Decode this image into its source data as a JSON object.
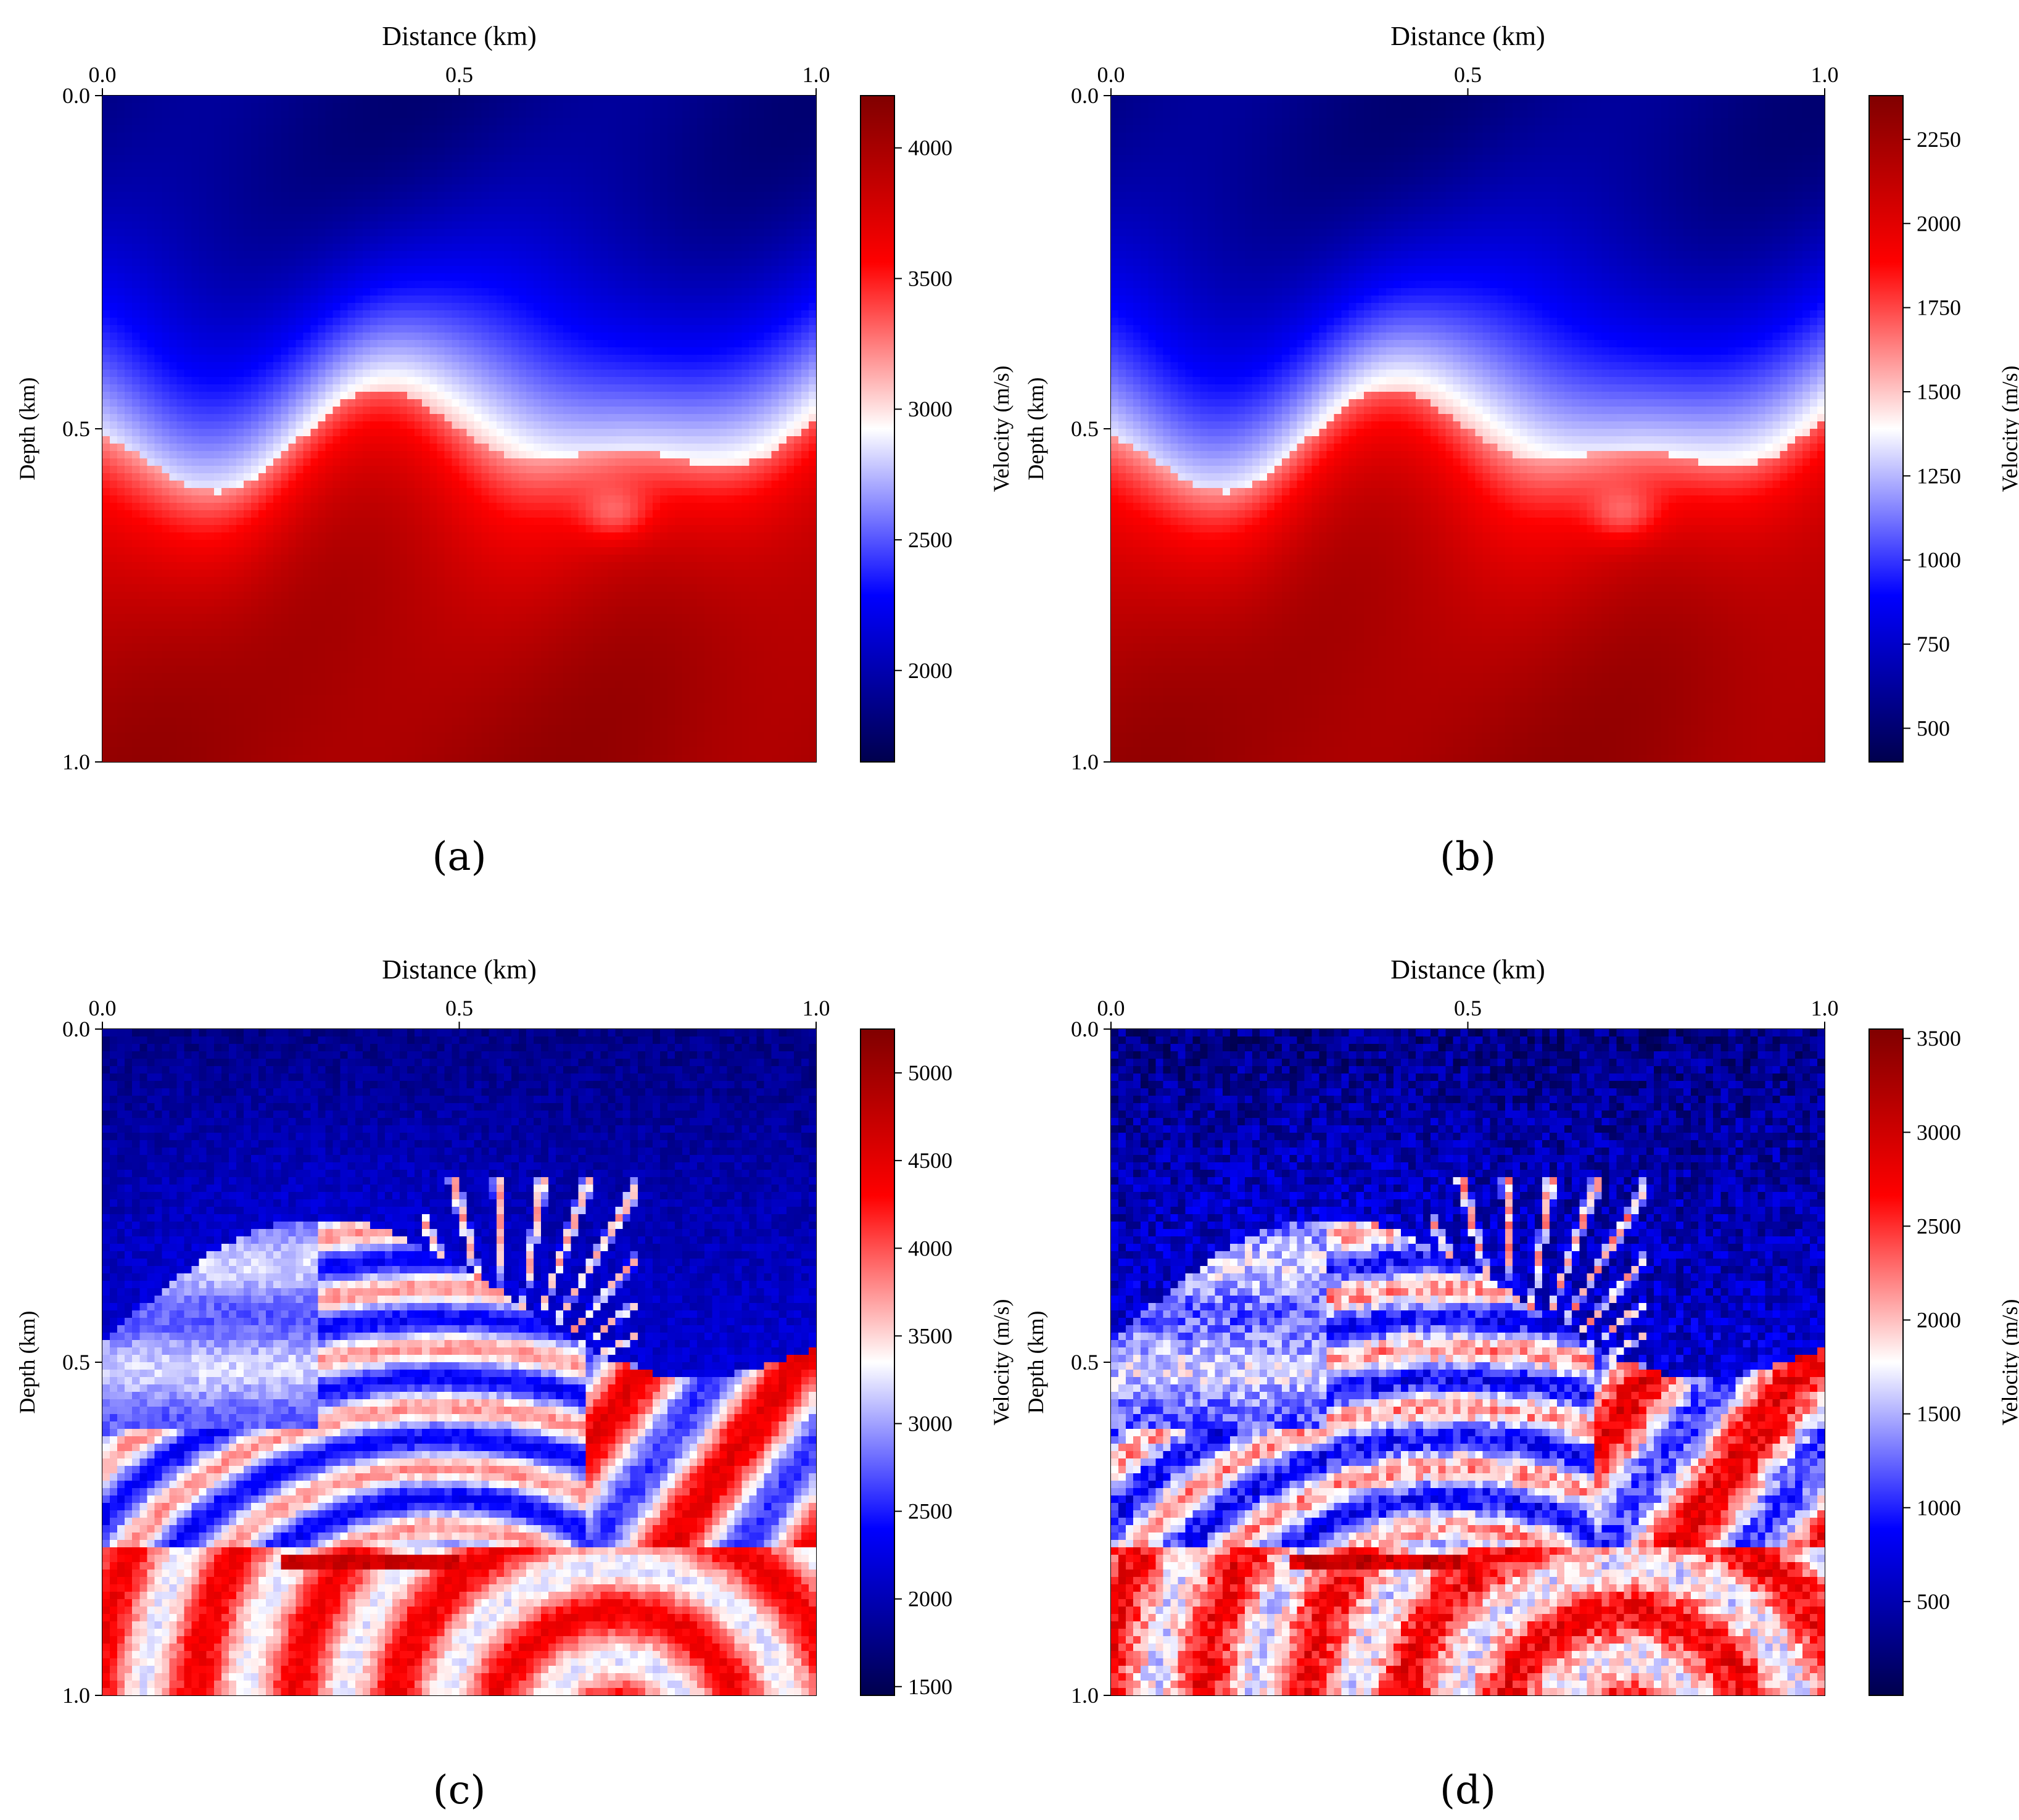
{
  "colormap": [
    "#00004d",
    "#0000ff",
    "#ffffff",
    "#ff0000",
    "#800000"
  ],
  "chart_data": [
    {
      "type": "heatmap",
      "label": "(a)",
      "xlabel": "Distance (km)",
      "ylabel": "Depth (km)",
      "xlim": [
        0.0,
        1.0
      ],
      "ylim": [
        0.0,
        1.0
      ],
      "xticks": [
        "0.0",
        "0.5",
        "1.0"
      ],
      "yticks": [
        "0.0",
        "0.5",
        "1.0"
      ],
      "colorbar": {
        "label": "Velocity (m/s)",
        "range": [
          1650,
          4200
        ],
        "ticks": [
          2000,
          2500,
          3000,
          3500,
          4000
        ]
      },
      "pattern": "smooth"
    },
    {
      "type": "heatmap",
      "label": "(b)",
      "xlabel": "Distance (km)",
      "ylabel": "Depth (km)",
      "xlim": [
        0.0,
        1.0
      ],
      "ylim": [
        0.0,
        1.0
      ],
      "xticks": [
        "0.0",
        "0.5",
        "1.0"
      ],
      "yticks": [
        "0.0",
        "0.5",
        "1.0"
      ],
      "colorbar": {
        "label": "Velocity (m/s)",
        "range": [
          400,
          2380
        ],
        "ticks": [
          500,
          750,
          1000,
          1250,
          1500,
          1750,
          2000,
          2250
        ]
      },
      "pattern": "smooth"
    },
    {
      "type": "heatmap",
      "label": "(c)",
      "xlabel": "Distance (km)",
      "ylabel": "Depth (km)",
      "xlim": [
        0.0,
        1.0
      ],
      "ylim": [
        0.0,
        1.0
      ],
      "xticks": [
        "0.0",
        "0.5",
        "1.0"
      ],
      "yticks": [
        "0.0",
        "0.5",
        "1.0"
      ],
      "colorbar": {
        "label": "Velocity (m/s)",
        "range": [
          1450,
          5250
        ],
        "ticks": [
          1500,
          2000,
          2500,
          3000,
          3500,
          4000,
          4500,
          5000
        ]
      },
      "pattern": "structured"
    },
    {
      "type": "heatmap",
      "label": "(d)",
      "xlabel": "Distance (km)",
      "ylabel": "Depth (km)",
      "xlim": [
        0.0,
        1.0
      ],
      "ylim": [
        0.0,
        1.0
      ],
      "xticks": [
        "0.0",
        "0.5",
        "1.0"
      ],
      "yticks": [
        "0.0",
        "0.5",
        "1.0"
      ],
      "colorbar": {
        "label": "Velocity (m/s)",
        "range": [
          0,
          3550
        ],
        "ticks": [
          500,
          1000,
          1500,
          2000,
          2500,
          3000,
          3500
        ]
      },
      "pattern": "structured-noisy"
    }
  ]
}
